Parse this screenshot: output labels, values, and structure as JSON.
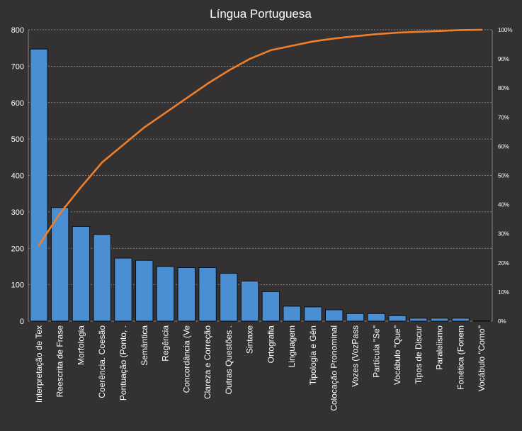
{
  "chart_data": {
    "type": "bar",
    "title": "Língua Portuguesa",
    "categories": [
      "Interpretação de Tex",
      "Reescrita de Frase",
      "Morfologia",
      "Coerência. Coesão",
      "Pontuação (Ponto, .",
      "Semântica",
      "Regência",
      "Concordância (Ve",
      "Clareza e Correção",
      "Outras Questões .",
      "Sintaxe",
      "Ortografia",
      "Linguagem",
      "Tipologia e Gên",
      "Colocação Pronominal",
      "Vozes (VozPass",
      "Partícula \"Se\"",
      "Vocábulo \"Que\"",
      "Tipos de Discur",
      "Paralelismo",
      "Fonética (Fonem",
      "Vocábulo \"Como\""
    ],
    "series": [
      {
        "type": "bar",
        "axis": "left",
        "values": [
          747,
          312,
          260,
          238,
          173,
          167,
          150,
          147,
          147,
          131,
          110,
          81,
          41,
          39,
          31,
          21,
          21,
          15,
          8,
          8,
          8,
          1
        ]
      },
      {
        "type": "line",
        "axis": "right",
        "values": [
          0.26,
          0.37,
          0.46,
          0.545,
          0.605,
          0.665,
          0.715,
          0.765,
          0.815,
          0.86,
          0.9,
          0.93,
          0.945,
          0.96,
          0.97,
          0.978,
          0.985,
          0.99,
          0.993,
          0.996,
          0.999,
          1.0
        ]
      }
    ],
    "ylim": [
      0,
      800
    ],
    "yticks": [
      0,
      100,
      200,
      300,
      400,
      500,
      600,
      700,
      800
    ],
    "y2lim": [
      0,
      1
    ],
    "y2ticks": [
      "0%",
      "10%",
      "20%",
      "30%",
      "40%",
      "50%",
      "60%",
      "70%",
      "80%",
      "90%",
      "100%"
    ],
    "grid": true,
    "legend": "none",
    "colors": {
      "background": "#333131",
      "bar": "#4a8fd4",
      "bar_edge": "#101010",
      "line": "#f07f2b",
      "grid": "#9a9a9a",
      "text": "#ffffff"
    }
  }
}
